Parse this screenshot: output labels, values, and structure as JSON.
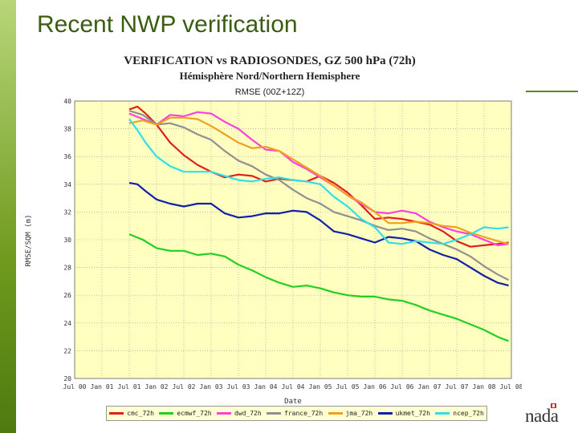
{
  "slide": {
    "title": "Recent NWP verification",
    "logo_text": "nada"
  },
  "chart_data": {
    "type": "line",
    "title": "VERIFICATION vs RADIOSONDES, GZ 500 hPa (72h)",
    "subtitle": "Hémisphère Nord/Northern Hemisphere",
    "subtitle2": "RMSE (00Z+12Z)",
    "xlabel": "Date",
    "ylabel": "RMSE/SQM (m)",
    "ylim": [
      20,
      40
    ],
    "yticks": [
      20,
      22,
      24,
      26,
      28,
      30,
      32,
      34,
      36,
      38,
      40
    ],
    "xticks": [
      "Jul 00",
      "Jan 01",
      "Jul 01",
      "Jan 02",
      "Jul 02",
      "Jan 03",
      "Jul 03",
      "Jan 04",
      "Jul 04",
      "Jan 05",
      "Jul 05",
      "Jan 06",
      "Jul 06",
      "Jan 07",
      "Jul 07",
      "Jan 08",
      "Jul 08"
    ],
    "xrange": [
      0,
      16
    ],
    "grid": true,
    "series": [
      {
        "name": "cmc_72h",
        "color": "#e0201c",
        "x": [
          2.0,
          2.3,
          2.6,
          3.0,
          3.5,
          4.0,
          4.5,
          5.0,
          5.5,
          6.0,
          6.5,
          7.0,
          7.5,
          8.0,
          8.5,
          9.0,
          9.5,
          10.0,
          10.5,
          11.0,
          11.5,
          12.0,
          12.5,
          13.0,
          13.5,
          14.0,
          14.5,
          15.0,
          15.5,
          15.9
        ],
        "values": [
          39.4,
          39.6,
          39.1,
          38.3,
          37.0,
          36.1,
          35.4,
          34.9,
          34.5,
          34.7,
          34.6,
          34.2,
          34.4,
          34.3,
          34.2,
          34.6,
          34.1,
          33.4,
          32.5,
          31.5,
          31.6,
          31.5,
          31.3,
          31.1,
          30.6,
          29.9,
          29.5,
          29.6,
          29.7,
          29.8
        ]
      },
      {
        "name": "ecmwf_72h",
        "color": "#22d022",
        "x": [
          2.0,
          2.5,
          3.0,
          3.5,
          4.0,
          4.5,
          5.0,
          5.5,
          6.0,
          6.5,
          7.0,
          7.5,
          8.0,
          8.5,
          9.0,
          9.5,
          10.0,
          10.5,
          11.0,
          11.5,
          12.0,
          12.5,
          13.0,
          13.5,
          14.0,
          14.5,
          15.0,
          15.5,
          15.9
        ],
        "values": [
          30.4,
          30.0,
          29.4,
          29.2,
          29.2,
          28.9,
          29.0,
          28.8,
          28.2,
          27.8,
          27.3,
          26.9,
          26.6,
          26.7,
          26.5,
          26.2,
          26.0,
          25.9,
          25.9,
          25.7,
          25.6,
          25.3,
          24.9,
          24.6,
          24.3,
          23.9,
          23.5,
          23.0,
          22.7
        ]
      },
      {
        "name": "dwd_72h",
        "color": "#ff40e0",
        "x": [
          2.0,
          2.5,
          3.0,
          3.5,
          4.0,
          4.5,
          5.0,
          5.5,
          6.0,
          6.5,
          7.0,
          7.5,
          8.0,
          8.5,
          9.0,
          9.5,
          10.0,
          10.5,
          11.0,
          11.5,
          12.0,
          12.5,
          13.0,
          13.5,
          14.0,
          14.5,
          15.0,
          15.5,
          15.9
        ],
        "values": [
          39.1,
          38.7,
          38.3,
          39.0,
          38.9,
          39.2,
          39.1,
          38.5,
          38.0,
          37.2,
          36.5,
          36.4,
          35.6,
          35.1,
          34.5,
          33.9,
          33.2,
          32.6,
          32.0,
          31.9,
          32.1,
          31.9,
          31.3,
          30.9,
          30.6,
          30.4,
          30.0,
          29.6,
          29.7
        ]
      },
      {
        "name": "france_72h",
        "color": "#909090",
        "x": [
          2.0,
          2.5,
          3.0,
          3.5,
          4.0,
          4.5,
          5.0,
          5.5,
          6.0,
          6.5,
          7.0,
          7.5,
          8.0,
          8.5,
          9.0,
          9.5,
          10.0,
          10.5,
          11.0,
          11.5,
          12.0,
          12.5,
          13.0,
          13.5,
          14.0,
          14.5,
          15.0,
          15.5,
          15.9
        ],
        "values": [
          39.3,
          39.0,
          38.3,
          38.4,
          38.1,
          37.6,
          37.2,
          36.4,
          35.7,
          35.3,
          34.7,
          34.3,
          33.6,
          33.0,
          32.6,
          32.0,
          31.7,
          31.4,
          31.0,
          30.7,
          30.8,
          30.6,
          30.1,
          29.7,
          29.3,
          28.8,
          28.1,
          27.5,
          27.1
        ]
      },
      {
        "name": "jma_72h",
        "color": "#f0a020",
        "x": [
          2.0,
          2.5,
          3.0,
          3.5,
          4.0,
          4.5,
          5.0,
          5.5,
          6.0,
          6.5,
          7.0,
          7.5,
          8.0,
          8.5,
          9.0,
          9.5,
          10.0,
          10.5,
          11.0,
          11.5,
          12.0,
          12.5,
          13.0,
          13.5,
          14.0,
          14.5,
          15.0,
          15.5,
          15.9
        ],
        "values": [
          38.4,
          38.6,
          38.3,
          38.8,
          38.8,
          38.7,
          38.2,
          37.6,
          37.0,
          36.6,
          36.7,
          36.4,
          35.8,
          35.2,
          34.6,
          33.9,
          33.2,
          32.7,
          32.0,
          31.2,
          31.2,
          31.3,
          31.2,
          31.0,
          30.9,
          30.5,
          30.2,
          29.9,
          29.7
        ]
      },
      {
        "name": "ukmet_72h",
        "color": "#1020a8",
        "x": [
          2.0,
          2.3,
          2.6,
          3.0,
          3.5,
          4.0,
          4.5,
          5.0,
          5.5,
          6.0,
          6.5,
          7.0,
          7.5,
          8.0,
          8.5,
          9.0,
          9.5,
          10.0,
          10.5,
          11.0,
          11.5,
          12.0,
          12.5,
          13.0,
          13.5,
          14.0,
          14.5,
          15.0,
          15.5,
          15.9
        ],
        "values": [
          34.1,
          34.0,
          33.5,
          32.9,
          32.6,
          32.4,
          32.6,
          32.6,
          31.9,
          31.6,
          31.7,
          31.9,
          31.9,
          32.1,
          32.0,
          31.4,
          30.6,
          30.4,
          30.1,
          29.8,
          30.2,
          30.1,
          29.9,
          29.3,
          28.9,
          28.6,
          28.0,
          27.4,
          26.9,
          26.7
        ]
      },
      {
        "name": "ncep_72h",
        "color": "#30e0e8",
        "x": [
          2.0,
          2.3,
          2.6,
          3.0,
          3.5,
          4.0,
          4.5,
          5.0,
          5.5,
          6.0,
          6.5,
          7.0,
          7.5,
          8.0,
          8.5,
          9.0,
          9.5,
          10.0,
          10.5,
          11.0,
          11.5,
          12.0,
          12.5,
          13.0,
          13.5,
          14.0,
          14.5,
          15.0,
          15.5,
          15.9
        ],
        "values": [
          38.7,
          37.9,
          37.0,
          36.0,
          35.3,
          34.9,
          34.9,
          34.9,
          34.6,
          34.3,
          34.2,
          34.4,
          34.5,
          34.3,
          34.2,
          34.0,
          33.1,
          32.4,
          31.5,
          30.9,
          29.8,
          29.7,
          29.9,
          29.8,
          29.7,
          30.0,
          30.4,
          30.9,
          30.8,
          30.9
        ]
      }
    ]
  }
}
